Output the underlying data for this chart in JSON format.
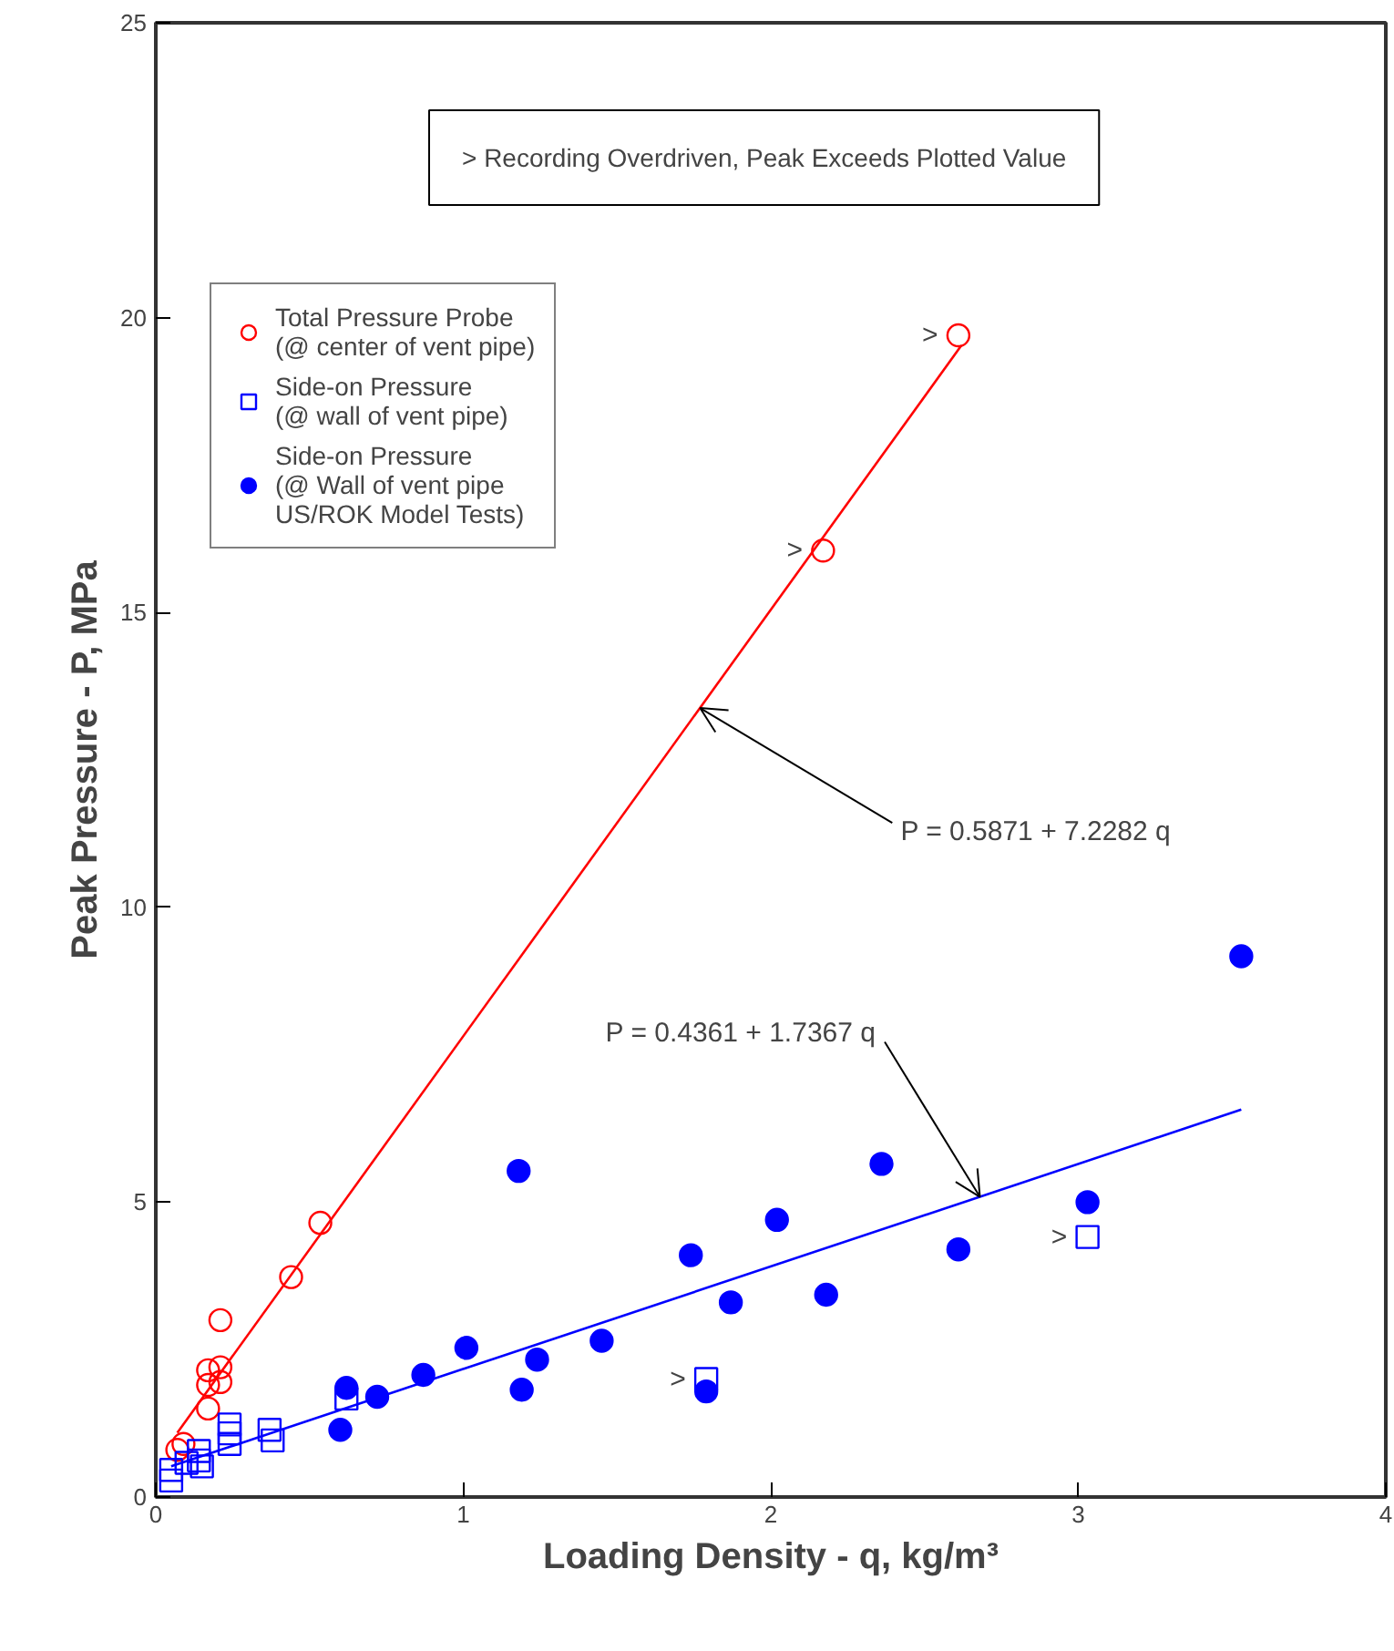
{
  "chart_data": {
    "type": "scatter",
    "xlabel": "Loading Density - q, kg/m³",
    "ylabel": "Peak Pressure - P, MPa",
    "xlim": [
      0,
      4
    ],
    "ylim": [
      0,
      25
    ],
    "xticks": [
      0,
      1,
      2,
      3,
      4
    ],
    "yticks": [
      0,
      5,
      10,
      15,
      20,
      25
    ],
    "grid": false,
    "legend": "top left",
    "series": [
      {
        "name": "Total Pressure Probe\n(@ center of vent pipe)",
        "color": "#ff0000",
        "marker": "circle",
        "x": [
          0.07,
          0.09,
          0.17,
          0.17,
          0.17,
          0.21,
          0.21,
          0.21,
          0.44,
          0.535,
          2.17,
          2.61
        ],
        "values": [
          0.8,
          0.9,
          1.5,
          1.9,
          2.15,
          2.2,
          1.95,
          3.0,
          3.73,
          4.65,
          16.05,
          19.7
        ]
      },
      {
        "name": "Side-on Pressure\n(@ wall of vent pipe)",
        "color": "#0000ff",
        "marker": "square",
        "x": [
          0.05,
          0.05,
          0.1,
          0.14,
          0.14,
          0.15,
          0.24,
          0.24,
          0.24,
          0.37,
          0.38,
          0.62,
          1.79,
          3.03
        ],
        "values": [
          0.46,
          0.28,
          0.58,
          0.78,
          0.62,
          0.52,
          1.23,
          0.9,
          1.08,
          1.14,
          0.96,
          1.67,
          2.0,
          4.41
        ]
      },
      {
        "name": "Side-on Pressure\n(@ Wall of vent pipe\nUS/ROK Model Tests)",
        "color": "#0000ff",
        "marker": "circle",
        "x": [
          0.6,
          0.62,
          0.72,
          0.87,
          1.01,
          1.18,
          1.19,
          1.24,
          1.45,
          1.74,
          1.79,
          1.87,
          2.02,
          2.18,
          2.36,
          2.61,
          3.03,
          3.53
        ],
        "values": [
          1.14,
          1.85,
          1.7,
          2.07,
          2.53,
          5.53,
          1.82,
          2.33,
          2.65,
          4.1,
          1.79,
          3.3,
          4.7,
          3.43,
          5.65,
          4.2,
          5.0,
          9.17
        ]
      },
      {
        "type": "line",
        "color": "#ff0000",
        "marker": "none",
        "x": [
          0.07,
          2.62
        ],
        "values": [
          1.09,
          19.53
        ]
      },
      {
        "type": "line",
        "color": "#0000ff",
        "marker": "none",
        "x": [
          0.05,
          3.53
        ],
        "values": [
          0.52,
          6.57
        ]
      }
    ],
    "annotations": [
      "> Recording Overdriven, Peak Exceeds Plotted Value",
      {
        "text": "P = 0.5871 + 7.2282 q",
        "x": 1.77,
        "y": 13.38
      },
      {
        "text": "P = 0.4361 + 1.7367 q",
        "x": 2.68,
        "y": 5.09
      },
      {
        "text": ">",
        "x": 2.61,
        "y": 19.7
      },
      {
        "text": ">",
        "x": 2.17,
        "y": 16.05
      },
      {
        "text": ">",
        "x": 1.79,
        "y": 2.0
      },
      {
        "text": ">",
        "x": 3.03,
        "y": 4.41
      }
    ]
  }
}
